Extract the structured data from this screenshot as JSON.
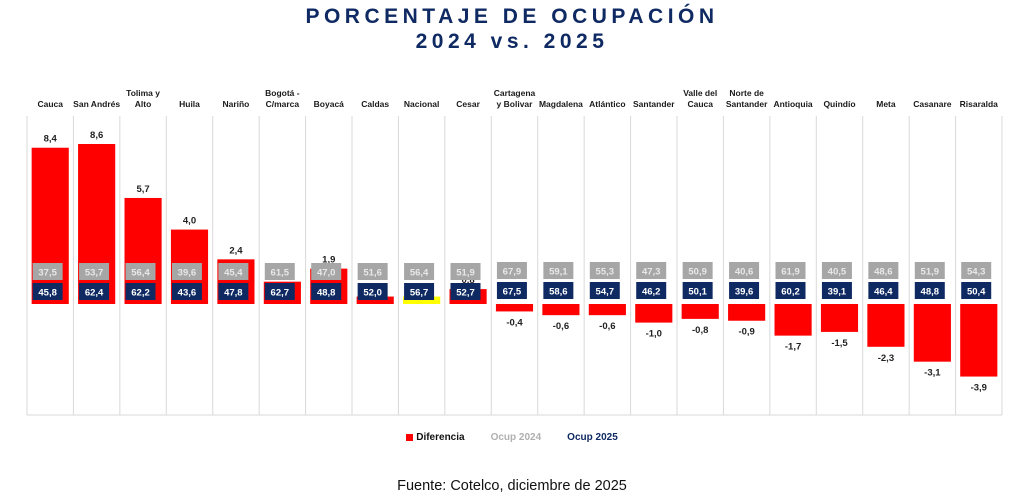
{
  "chart_data": {
    "type": "bar",
    "title": "PORCENTAJE DE OCUPACIÓN",
    "subtitle": "2024 vs. 2025",
    "xlabel": "",
    "ylabel": "",
    "grid": "vertical separators",
    "legend_position": "bottom",
    "categories": [
      "Cauca",
      "San Andrés",
      "Tolima y Alto",
      "Huila",
      "Nariño",
      "Bogotá - C/marca",
      "Boyacá",
      "Caldas",
      "Nacional",
      "Cesar",
      "Cartagena y Bolivar",
      "Magdalena",
      "Atlántico",
      "Santander",
      "Valle del Cauca",
      "Norte de Santander",
      "Antioquia",
      "Quindío",
      "Meta",
      "Casanare",
      "Risaralda"
    ],
    "category_lines": [
      [
        "Cauca"
      ],
      [
        "San Andrés"
      ],
      [
        "Tolima y",
        "Alto"
      ],
      [
        "Huila"
      ],
      [
        "Nariño"
      ],
      [
        "Bogotá -",
        "C/marca"
      ],
      [
        "Boyacá"
      ],
      [
        "Caldas"
      ],
      [
        "Nacional"
      ],
      [
        "Cesar"
      ],
      [
        "Cartagena",
        "y Bolivar"
      ],
      [
        "Magdalena"
      ],
      [
        "Atlántico"
      ],
      [
        "Santander"
      ],
      [
        "Valle del",
        "Cauca"
      ],
      [
        "Norte de",
        "Santander"
      ],
      [
        "Antioquia"
      ],
      [
        "Quindío"
      ],
      [
        "Meta"
      ],
      [
        "Casanare"
      ],
      [
        "Risaralda"
      ]
    ],
    "series": [
      {
        "name": "Diferencia",
        "type": "bar",
        "values": [
          8.4,
          8.6,
          5.7,
          4.0,
          2.4,
          1.2,
          1.9,
          0.4,
          0.4,
          0.8,
          -0.4,
          -0.6,
          -0.6,
          -1.0,
          -0.8,
          -0.9,
          -1.7,
          -1.5,
          -2.3,
          -3.1,
          -3.9
        ]
      },
      {
        "name": "Ocup 2024",
        "type": "label",
        "values": [
          37.5,
          53.7,
          56.4,
          39.6,
          45.4,
          61.5,
          47.0,
          51.6,
          56.4,
          51.9,
          67.9,
          59.1,
          55.3,
          47.3,
          50.9,
          40.6,
          61.9,
          40.5,
          48.6,
          51.9,
          54.3
        ]
      },
      {
        "name": "Ocup 2025",
        "type": "label",
        "values": [
          45.8,
          62.4,
          62.2,
          43.6,
          47.8,
          62.7,
          48.8,
          52.0,
          56.7,
          52.7,
          67.5,
          58.6,
          54.7,
          46.2,
          50.1,
          39.6,
          60.2,
          39.1,
          46.4,
          48.8,
          50.4
        ]
      }
    ],
    "highlight_category": "Nacional",
    "ylim": [
      -6.0,
      10.2
    ],
    "colors": {
      "Diferencia": "#ff0000",
      "Ocup 2024": "#a6a6a6",
      "Ocup 2025": "#0f2a63",
      "highlight": "#ffff00"
    }
  },
  "legend": {
    "items": [
      {
        "label": "Diferencia",
        "color": "#ff0000",
        "text_color": "#111111"
      },
      {
        "label": "Ocup 2024",
        "color": "#a6a6a6",
        "text_color": "#b0b0b0"
      },
      {
        "label": "Ocup 2025",
        "color": "#0f2a63",
        "text_color": "#0f2a63"
      }
    ]
  },
  "source": "Fuente: Cotelco, diciembre de 2025"
}
